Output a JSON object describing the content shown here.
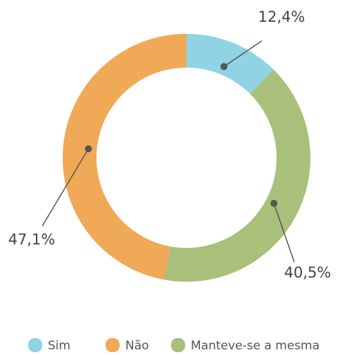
{
  "chart_data": {
    "type": "donut",
    "categories": [
      "Sim",
      "Não",
      "Manteve-se a mesma"
    ],
    "values": [
      12.4,
      47.1,
      40.5
    ],
    "value_labels": [
      "12,4%",
      "47,1%",
      "40,5%"
    ],
    "colors": [
      "#8fd3e5",
      "#f0a957",
      "#a8c07a"
    ],
    "legend": "bottom"
  }
}
